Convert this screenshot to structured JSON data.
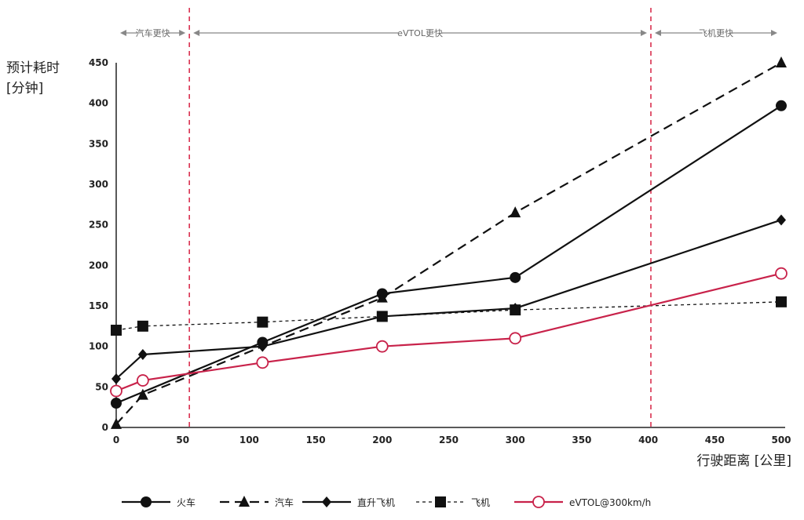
{
  "chart_data": {
    "type": "line",
    "ylabel_line1": "预计耗时",
    "ylabel_line2": "[分钟]",
    "xlabel": "行驶距离 [公里]",
    "xlim": [
      0,
      500
    ],
    "ylim": [
      0,
      450
    ],
    "xticks": [
      0,
      50,
      100,
      150,
      200,
      250,
      300,
      350,
      400,
      450,
      500
    ],
    "yticks": [
      0,
      50,
      100,
      150,
      200,
      250,
      300,
      350,
      400,
      450
    ],
    "grid": false,
    "legend_position": "bottom",
    "thresholds": [
      {
        "x": 55,
        "color": "#d9304f"
      },
      {
        "x": 402,
        "color": "#d9304f"
      }
    ],
    "regions": [
      {
        "label": "汽车更快",
        "from": 0,
        "to": 55
      },
      {
        "label": "eVTOL更快",
        "from": 55,
        "to": 402
      },
      {
        "label": "飞机更快",
        "from": 402,
        "to": 500
      }
    ],
    "series": [
      {
        "name": "火车",
        "color": "#111111",
        "dash": "solid",
        "marker": "circle",
        "width": 2.2,
        "x": [
          0,
          110,
          200,
          300,
          500
        ],
        "y": [
          30,
          105,
          165,
          185,
          397
        ]
      },
      {
        "name": "汽车",
        "color": "#111111",
        "dash": "dashed",
        "marker": "triangle",
        "width": 2.2,
        "x": [
          0,
          20,
          200,
          300,
          500
        ],
        "y": [
          4,
          40,
          160,
          265,
          450
        ]
      },
      {
        "name": "直升飞机",
        "color": "#111111",
        "dash": "solid",
        "marker": "diamond",
        "width": 2.2,
        "x": [
          0,
          20,
          110,
          200,
          300,
          500
        ],
        "y": [
          60,
          90,
          100,
          137,
          147,
          256
        ]
      },
      {
        "name": "飞机",
        "color": "#111111",
        "dash": "dotted",
        "marker": "square",
        "width": 1.3,
        "x": [
          0,
          20,
          110,
          200,
          300,
          500
        ],
        "y": [
          120,
          125,
          130,
          137,
          145,
          155
        ]
      },
      {
        "name": "eVTOL@300km/h",
        "color": "#c8224a",
        "dash": "solid",
        "marker": "open-circle",
        "width": 2.2,
        "x": [
          0,
          20,
          110,
          200,
          300,
          500
        ],
        "y": [
          45,
          58,
          80,
          100,
          110,
          190
        ]
      }
    ]
  }
}
